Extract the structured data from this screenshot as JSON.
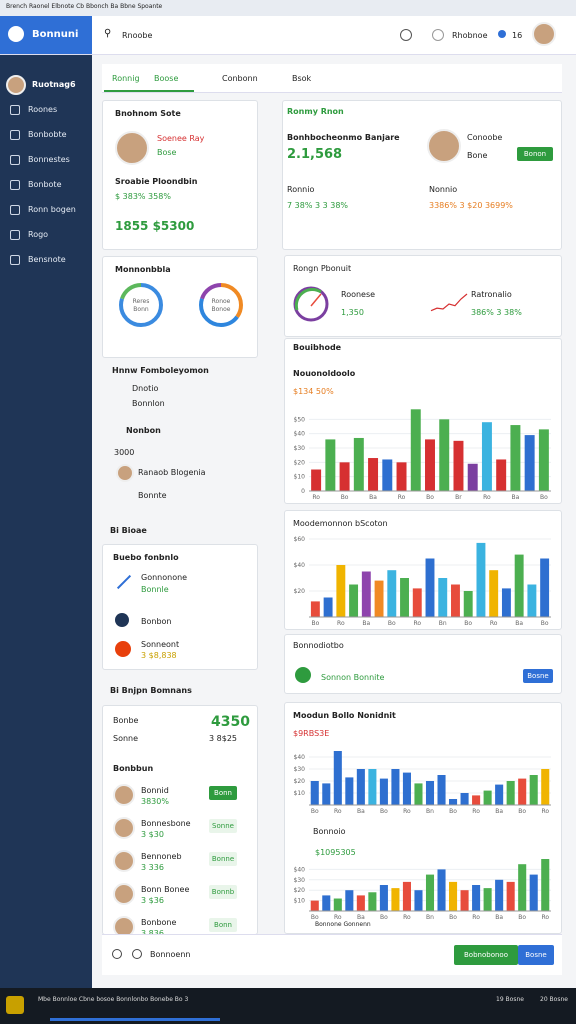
{
  "status_bar": "Brench Raonel Elbnote Cb Bbonch Ba Bbne Spoante",
  "header": {
    "logo": "Bonnuni",
    "search": "Rnoobe",
    "account": "Rhobnoe",
    "badge": "16"
  },
  "sidebar": {
    "user": "Ruotnag6",
    "items": [
      "Roones",
      "Bonbobte",
      "Bonnestes",
      "Bonbote",
      "Ronn bogen",
      "Rogo",
      "Bensnote"
    ]
  },
  "tabs": [
    "Ronnig",
    "Boose",
    "Conbonn",
    "Bsok"
  ],
  "left": {
    "profile": {
      "title": "Bnohnom Sote",
      "name": "Soenee Ray",
      "tag": "Bose",
      "heading": "Sroabie Ploondbin",
      "stats": "$ 383% 358%",
      "amount": "1855 $5300"
    },
    "donuts": {
      "title": "Monnonbbla",
      "items": [
        {
          "label": "Reres",
          "sub": "Bonn",
          "segments": [
            {
              "value": 80,
              "color": "#3b8be0"
            },
            {
              "value": 20,
              "color": "#5cb85c"
            }
          ]
        },
        {
          "label": "Ronoe",
          "sub": "Bonoe",
          "segments": [
            {
              "value": 35,
              "color": "#f08a24"
            },
            {
              "value": 45,
              "color": "#2e86de"
            },
            {
              "value": 20,
              "color": "#8e44ad"
            }
          ]
        }
      ]
    },
    "news": {
      "title": "Hnnw Fomboleyomon",
      "items": [
        "Dnotio",
        "Bonnlon"
      ]
    },
    "members": {
      "title": "Nonbon",
      "count": "3000",
      "person": "Ranaob Blogenia",
      "tag": "Bonnte"
    },
    "section1": "Bi Bioae",
    "activity": {
      "title": "Buebo fonbnlo",
      "items": [
        {
          "name": "Gonnonone",
          "sub": "Bonnle"
        },
        {
          "name": "Bonbon"
        },
        {
          "name": "Sonneont",
          "sub": "3 $8,838"
        }
      ]
    },
    "section2": "Bi Bnjpn Bomnans",
    "summary": {
      "label1": "Bonbe",
      "value1": "4350",
      "label2": "Sonne",
      "value2": "3 8$25"
    },
    "people": {
      "title": "Bonbbun",
      "items": [
        {
          "name": "Bonnid",
          "sub": "3830%",
          "action": "Bonn"
        },
        {
          "name": "Bonnesbone",
          "sub": "3 $30",
          "action": "Sonne"
        },
        {
          "name": "Bennoneb",
          "sub": "3 336",
          "action": "Bonne"
        },
        {
          "name": "Bonn Bonee",
          "sub": "3 $36",
          "action": "Bonnb"
        },
        {
          "name": "Bonbone",
          "sub": "3 836",
          "action": "Bonn"
        }
      ]
    }
  },
  "right": {
    "overview": {
      "tab": "Ronmy Rnon",
      "heading": "Bonhbocheonmo Banjare",
      "value": "2.1,568",
      "person": "Conoobe",
      "person_sub": "Bone",
      "button": "Bonon",
      "metric1": {
        "label": "Ronnio",
        "value": "7 38% 3 3 38%"
      },
      "metric2": {
        "label": "Nonnio",
        "value": "3386% 3 $20 3699%"
      }
    },
    "progress": {
      "title": "Rongn Pbonuit",
      "label1": "Roonese",
      "value1": "1,350",
      "label2": "Ratronalio",
      "value2": "386% 3 38%",
      "trend": [
        4,
        7,
        6,
        12,
        10,
        18,
        24
      ]
    },
    "dashboard": {
      "title": "Bouibhode",
      "sub": "Nouonoldoolo",
      "badge": "$134 50%",
      "chart": {
        "ylim": [
          0,
          60
        ],
        "yticks": [
          0,
          {
            "value": 10,
            "label": "$10"
          },
          {
            "value": 20,
            "label": "$20"
          },
          {
            "value": 30,
            "label": "$30"
          },
          {
            "value": 40,
            "label": "$40"
          },
          {
            "value": 50,
            "label": "$50"
          }
        ],
        "values": [
          15,
          36,
          20,
          37,
          23,
          22,
          20,
          57,
          36,
          50,
          35,
          19,
          48,
          22,
          46,
          39,
          43
        ],
        "colors": [
          "#d63031",
          "#4caf50",
          "#d63031",
          "#4caf50",
          "#d63031",
          "#2e6fd0",
          "#d63031",
          "#4caf50",
          "#d63031",
          "#4caf50",
          "#d63031",
          "#7b3fa0",
          "#3bb3e0",
          "#d63031",
          "#4caf50",
          "#2e6fd0",
          "#4caf50"
        ],
        "categories": [
          "Ro",
          null,
          "Bo",
          null,
          "Ba",
          null,
          "Ro",
          null,
          "Bo",
          null,
          "Br",
          null,
          "Ro",
          null,
          "Ba",
          null,
          "Bo"
        ]
      }
    },
    "comparison": {
      "title": "Moodemonnon bScoton",
      "chart": {
        "ylim": [
          0,
          60
        ],
        "yticks": [
          {
            "value": 20,
            "label": "$20"
          },
          {
            "value": 40,
            "label": "$40"
          },
          {
            "value": 60,
            "label": "$60"
          }
        ],
        "values": [
          12,
          15,
          40,
          25,
          35,
          28,
          36,
          30,
          22,
          45,
          30,
          25,
          20,
          57,
          36,
          22,
          48,
          25,
          45
        ],
        "colors": [
          "#e74c3c",
          "#2e6fd0",
          "#f0b400",
          "#4caf50",
          "#8e44ad",
          "#f08a24",
          "#3bb3e0",
          "#4caf50",
          "#e74c3c",
          "#2e6fd0",
          "#3bb3e0",
          "#e74c3c",
          "#4caf50",
          "#3bb3e0",
          "#f0b400",
          "#2e6fd0",
          "#4caf50",
          "#3bb3e0",
          "#2e6fd0"
        ],
        "categories": [
          "Bo",
          null,
          "Ro",
          null,
          "Ba",
          null,
          "Bo",
          null,
          "Ro",
          null,
          "Bn",
          null,
          "Bo",
          null,
          "Ro",
          null,
          "Ba",
          null,
          "Bo"
        ]
      }
    },
    "notes": {
      "title": "Bonnodiotbo",
      "item": "Sonnon Bonnite",
      "button": "Bosne"
    },
    "monthly": {
      "title": "Moodun Bollo Nonidnit",
      "badge": "$9RBS3E",
      "chart": {
        "ylim": [
          0,
          50
        ],
        "yticks": [
          {
            "value": 10,
            "label": "$10"
          },
          {
            "value": 20,
            "label": "$20"
          },
          {
            "value": 30,
            "label": "$30"
          },
          {
            "value": 40,
            "label": "$40"
          }
        ],
        "values": [
          20,
          18,
          45,
          23,
          30,
          30,
          22,
          30,
          27,
          18,
          20,
          25,
          5,
          10,
          8,
          12,
          17,
          20,
          22,
          25,
          30
        ],
        "colors": [
          "#2e6fd0",
          "#2e6fd0",
          "#2e6fd0",
          "#2e6fd0",
          "#2e6fd0",
          "#3bb3e0",
          "#2e6fd0",
          "#2e6fd0",
          "#2e6fd0",
          "#4caf50",
          "#2e6fd0",
          "#2e6fd0",
          "#2e6fd0",
          "#2e6fd0",
          "#e74c3c",
          "#4caf50",
          "#2e6fd0",
          "#4caf50",
          "#e74c3c",
          "#4caf50",
          "#f0b400"
        ],
        "categories": [
          "Bo",
          null,
          "Ro",
          null,
          "Ba",
          null,
          "Bo",
          null,
          "Ro",
          null,
          "Bn",
          null,
          "Bo",
          null,
          "Ro",
          null,
          "Ba",
          null,
          "Bo",
          null,
          "Ro"
        ]
      }
    },
    "weekly": {
      "title": "Bonnoio",
      "badge": "$1095305",
      "chart": {
        "ylim": [
          0,
          50
        ],
        "yticks": [
          {
            "value": 10,
            "label": "$10"
          },
          {
            "value": 20,
            "label": "$20"
          },
          {
            "value": 30,
            "label": "$30"
          },
          {
            "value": 40,
            "label": "$40"
          }
        ],
        "values": [
          10,
          15,
          12,
          20,
          15,
          18,
          25,
          22,
          28,
          20,
          35,
          40,
          28,
          20,
          25,
          22,
          30,
          28,
          45,
          35,
          50
        ],
        "colors": [
          "#e74c3c",
          "#2e6fd0",
          "#4caf50",
          "#2e6fd0",
          "#e74c3c",
          "#4caf50",
          "#2e6fd0",
          "#f0b400",
          "#e74c3c",
          "#2e6fd0",
          "#4caf50",
          "#2e6fd0",
          "#f0b400",
          "#e74c3c",
          "#2e6fd0",
          "#4caf50",
          "#2e6fd0",
          "#e74c3c",
          "#4caf50",
          "#2e6fd0",
          "#4caf50"
        ],
        "categories": [
          "Bo",
          null,
          "Ro",
          null,
          "Ba",
          null,
          "Bo",
          null,
          "Ro",
          null,
          "Bn",
          null,
          "Bo",
          null,
          "Ro",
          null,
          "Ba",
          null,
          "Bo",
          null,
          "Ro"
        ]
      },
      "legend": "Bonnone Gonnenn"
    },
    "footer": {
      "label": "Bonnoenn",
      "button1": "Bobnobonoo",
      "button2": "Bosne"
    }
  },
  "taskbar": {
    "text": "Mbe Bonnloe Cbne bosoe Bonnlonbo Bonebe Bo 3",
    "time1": "19 Bosne",
    "time2": "20 Bosne"
  }
}
